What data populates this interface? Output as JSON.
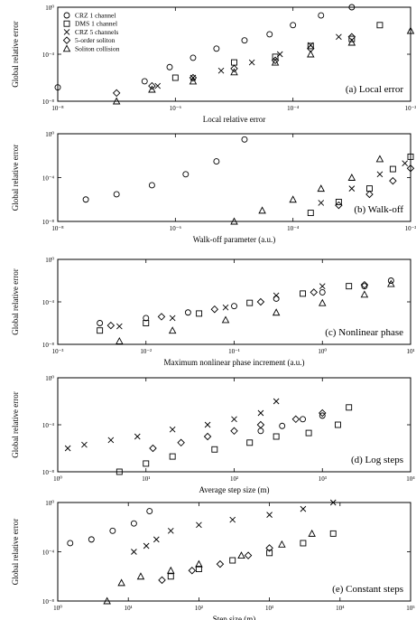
{
  "chart_data": [
    {
      "type": "scatter",
      "panel_label": "(a) Local error",
      "xlabel": "Local relative error",
      "ylabel": "Global relative error",
      "xscale": "log",
      "yscale": "log",
      "xlim": [
        1e-08,
        0.01
      ],
      "ylim": [
        1e-08,
        1
      ],
      "xticks": [
        1e-08,
        1e-06,
        0.0001,
        0.01
      ],
      "xtick_labels": [
        "10⁻⁸",
        "10⁻⁶",
        "10⁻⁴",
        "10⁻²"
      ],
      "yticks": [
        1e-08,
        0.0001,
        1
      ],
      "ytick_labels": [
        "10⁻⁸",
        "10⁻⁴",
        "10⁰"
      ],
      "legend": {
        "position": "top-left",
        "entries": [
          {
            "marker": "circle",
            "label": "CRZ 1 channel"
          },
          {
            "marker": "square",
            "label": "DMS 1 channel"
          },
          {
            "marker": "x",
            "label": "CRZ 5 channels"
          },
          {
            "marker": "diamond",
            "label": "5-order soliton"
          },
          {
            "marker": "triangle",
            "label": "Soliton collision"
          }
        ]
      },
      "series": [
        {
          "marker": "circle",
          "points": [
            [
              1e-08,
              1.5e-07
            ],
            [
              3e-07,
              5e-07
            ],
            [
              8e-07,
              8e-06
            ],
            [
              2e-06,
              5e-05
            ],
            [
              5e-06,
              0.0003
            ],
            [
              1.5e-05,
              0.0015
            ],
            [
              4e-05,
              0.005
            ],
            [
              0.0001,
              0.03
            ],
            [
              0.0003,
              0.2
            ],
            [
              0.001,
              1
            ]
          ]
        },
        {
          "marker": "square",
          "points": [
            [
              1e-06,
              1e-06
            ],
            [
              1e-05,
              2e-05
            ],
            [
              5e-05,
              6e-05
            ],
            [
              0.0002,
              0.0005
            ],
            [
              0.001,
              0.002
            ],
            [
              0.003,
              0.03
            ]
          ]
        },
        {
          "marker": "x",
          "points": [
            [
              5e-07,
              2e-07
            ],
            [
              2e-06,
              1e-06
            ],
            [
              6e-06,
              4e-06
            ],
            [
              2e-05,
              2e-05
            ],
            [
              6e-05,
              0.0001
            ],
            [
              0.0002,
              0.0006
            ],
            [
              0.0006,
              0.003
            ]
          ]
        },
        {
          "marker": "diamond",
          "points": [
            [
              1e-07,
              5e-08
            ],
            [
              4e-07,
              2e-07
            ],
            [
              2e-06,
              1e-06
            ],
            [
              1e-05,
              6e-06
            ],
            [
              5e-05,
              3e-05
            ],
            [
              0.0002,
              0.0003
            ],
            [
              0.001,
              0.003
            ]
          ]
        },
        {
          "marker": "triangle",
          "points": [
            [
              1e-07,
              1e-08
            ],
            [
              4e-07,
              1e-07
            ],
            [
              2e-06,
              5e-07
            ],
            [
              1e-05,
              3e-06
            ],
            [
              5e-05,
              2e-05
            ],
            [
              0.0002,
              0.0001
            ],
            [
              0.001,
              0.001
            ],
            [
              0.01,
              0.01
            ]
          ]
        }
      ]
    },
    {
      "type": "scatter",
      "panel_label": "(b) Walk-off",
      "xlabel": "Walk-off parameter (a.u.)",
      "ylabel": "Global relative error",
      "xscale": "log",
      "yscale": "log",
      "xlim": [
        1e-08,
        0.01
      ],
      "ylim": [
        1e-08,
        1
      ],
      "xticks": [
        1e-08,
        1e-06,
        0.0001,
        0.01
      ],
      "xtick_labels": [
        "10⁻⁸",
        "10⁻⁶",
        "10⁻⁴",
        "10⁻²"
      ],
      "yticks": [
        1e-08,
        0.0001,
        1
      ],
      "ytick_labels": [
        "10⁻⁸",
        "10⁻⁴",
        "10⁰"
      ],
      "series": [
        {
          "marker": "circle",
          "points": [
            [
              3e-08,
              1e-06
            ],
            [
              1e-07,
              3e-06
            ],
            [
              4e-07,
              2e-05
            ],
            [
              1.5e-06,
              0.0002
            ],
            [
              5e-06,
              0.003
            ],
            [
              1.5e-05,
              0.3
            ]
          ]
        },
        {
          "marker": "square",
          "points": [
            [
              0.0002,
              6e-08
            ],
            [
              0.0006,
              6e-07
            ],
            [
              0.002,
              1e-05
            ],
            [
              0.005,
              0.0006
            ],
            [
              0.01,
              0.008
            ]
          ]
        },
        {
          "marker": "x",
          "points": [
            [
              0.0003,
              5e-07
            ],
            [
              0.001,
              1e-05
            ],
            [
              0.003,
              0.0002
            ],
            [
              0.008,
              0.002
            ]
          ]
        },
        {
          "marker": "diamond",
          "points": [
            [
              0.0006,
              3e-07
            ],
            [
              0.002,
              3e-06
            ],
            [
              0.005,
              5e-05
            ],
            [
              0.01,
              0.0007
            ]
          ]
        },
        {
          "marker": "triangle",
          "points": [
            [
              1e-05,
              1e-08
            ],
            [
              3e-05,
              1e-07
            ],
            [
              0.0001,
              1e-06
            ],
            [
              0.0003,
              1e-05
            ],
            [
              0.001,
              0.0001
            ],
            [
              0.003,
              0.005
            ]
          ]
        }
      ]
    },
    {
      "type": "scatter",
      "panel_label": "(c) Nonlinear phase",
      "xlabel": "Maximum nonlinear phase increment (a.u.)",
      "ylabel": "Global relative error",
      "xscale": "log",
      "yscale": "log",
      "xlim": [
        0.001,
        10
      ],
      "ylim": [
        1e-08,
        1
      ],
      "xticks": [
        0.001,
        0.01,
        0.1,
        1,
        10
      ],
      "xtick_labels": [
        "10⁻³",
        "10⁻²",
        "10⁻¹",
        "10⁰",
        "10¹"
      ],
      "yticks": [
        1e-08,
        0.0001,
        1
      ],
      "ytick_labels": [
        "10⁻⁸",
        "10⁻⁴",
        "10⁰"
      ],
      "series": [
        {
          "marker": "circle",
          "points": [
            [
              0.003,
              1e-06
            ],
            [
              0.01,
              3e-06
            ],
            [
              0.03,
              1e-05
            ],
            [
              0.1,
              4e-05
            ],
            [
              0.3,
              0.0002
            ],
            [
              1,
              0.0008
            ],
            [
              3,
              0.003
            ],
            [
              6,
              0.01
            ]
          ]
        },
        {
          "marker": "square",
          "points": [
            [
              0.003,
              2e-07
            ],
            [
              0.01,
              1e-06
            ],
            [
              0.04,
              8e-06
            ],
            [
              0.15,
              8e-05
            ],
            [
              0.6,
              0.0006
            ],
            [
              2,
              0.003
            ]
          ]
        },
        {
          "marker": "x",
          "points": [
            [
              0.005,
              5e-07
            ],
            [
              0.02,
              3e-06
            ],
            [
              0.08,
              3e-05
            ],
            [
              0.3,
              0.0004
            ],
            [
              1,
              0.003
            ]
          ]
        },
        {
          "marker": "diamond",
          "points": [
            [
              0.004,
              6e-07
            ],
            [
              0.015,
              4e-06
            ],
            [
              0.06,
              2e-05
            ],
            [
              0.2,
              0.0001
            ],
            [
              0.8,
              0.0008
            ],
            [
              3,
              0.004
            ]
          ]
        },
        {
          "marker": "triangle",
          "points": [
            [
              0.005,
              2e-08
            ],
            [
              0.02,
              2e-07
            ],
            [
              0.08,
              2e-06
            ],
            [
              0.3,
              1e-05
            ],
            [
              1,
              8e-05
            ],
            [
              3,
              0.0005
            ],
            [
              6,
              0.005
            ]
          ]
        }
      ]
    },
    {
      "type": "scatter",
      "panel_label": "(d) Log steps",
      "xlabel": "Average step size (m)",
      "ylabel": "Global relative error",
      "xscale": "log",
      "yscale": "log",
      "xlim": [
        1,
        10000
      ],
      "ylim": [
        1e-08,
        1
      ],
      "xticks": [
        1,
        10,
        100,
        1000,
        10000
      ],
      "xtick_labels": [
        "10⁰",
        "10¹",
        "10²",
        "10³",
        "10⁴"
      ],
      "yticks": [
        1e-08,
        0.0001,
        1
      ],
      "ytick_labels": [
        "10⁻⁸",
        "10⁻⁴",
        "10⁰"
      ],
      "series": [
        {
          "marker": "circle",
          "points": [
            [
              200,
              3e-05
            ],
            [
              350,
              8e-05
            ],
            [
              600,
              0.0003
            ],
            [
              1000,
              0.0006
            ]
          ]
        },
        {
          "marker": "square",
          "points": [
            [
              5,
              1e-08
            ],
            [
              10,
              5e-08
            ],
            [
              20,
              2e-07
            ],
            [
              60,
              8e-07
            ],
            [
              150,
              3e-06
            ],
            [
              300,
              1e-05
            ],
            [
              700,
              2e-05
            ],
            [
              1500,
              0.0001
            ],
            [
              2000,
              0.003
            ]
          ]
        },
        {
          "marker": "x",
          "points": [
            [
              1.3,
              1e-06
            ],
            [
              2,
              2e-06
            ],
            [
              4,
              5e-06
            ],
            [
              8,
              1e-05
            ],
            [
              20,
              4e-05
            ],
            [
              50,
              0.0001
            ],
            [
              100,
              0.0003
            ],
            [
              200,
              0.001
            ],
            [
              300,
              0.01
            ]
          ]
        },
        {
          "marker": "diamond",
          "points": [
            [
              12,
              1e-06
            ],
            [
              25,
              3e-06
            ],
            [
              50,
              1e-05
            ],
            [
              100,
              3e-05
            ],
            [
              200,
              0.0001
            ],
            [
              500,
              0.0003
            ],
            [
              1000,
              0.001
            ]
          ]
        },
        {
          "marker": "triangle",
          "points": []
        }
      ]
    },
    {
      "type": "scatter",
      "panel_label": "(e) Constant steps",
      "xlabel": "Step size (m)",
      "ylabel": "Global relative error",
      "xscale": "log",
      "yscale": "log",
      "xlim": [
        1,
        100000
      ],
      "ylim": [
        1e-08,
        1
      ],
      "xticks": [
        1,
        10,
        100,
        1000,
        10000,
        100000
      ],
      "xtick_labels": [
        "10⁰",
        "10¹",
        "10²",
        "10³",
        "10⁴",
        "10⁵"
      ],
      "yticks": [
        1e-08,
        0.0001,
        1
      ],
      "ytick_labels": [
        "10⁻⁸",
        "10⁻⁴",
        "10⁰"
      ],
      "series": [
        {
          "marker": "circle",
          "points": [
            [
              1.5,
              0.0005
            ],
            [
              3,
              0.001
            ],
            [
              6,
              0.005
            ],
            [
              12,
              0.02
            ],
            [
              20,
              0.2
            ]
          ]
        },
        {
          "marker": "square",
          "points": [
            [
              40,
              1e-06
            ],
            [
              100,
              4e-06
            ],
            [
              300,
              2e-05
            ],
            [
              1000,
              8e-05
            ],
            [
              3000,
              0.0005
            ],
            [
              8000,
              0.003
            ]
          ]
        },
        {
          "marker": "x",
          "points": [
            [
              12,
              0.0001
            ],
            [
              18,
              0.0003
            ],
            [
              25,
              0.001
            ],
            [
              40,
              0.005
            ],
            [
              100,
              0.015
            ],
            [
              300,
              0.04
            ],
            [
              1000,
              0.1
            ],
            [
              3000,
              0.3
            ],
            [
              8000,
              1
            ]
          ]
        },
        {
          "marker": "diamond",
          "points": [
            [
              30,
              5e-07
            ],
            [
              80,
              3e-06
            ],
            [
              200,
              1e-05
            ],
            [
              500,
              5e-05
            ],
            [
              1000,
              0.0002
            ]
          ]
        },
        {
          "marker": "triangle",
          "points": [
            [
              5,
              1e-08
            ],
            [
              8,
              3e-07
            ],
            [
              15,
              1e-06
            ],
            [
              40,
              3e-06
            ],
            [
              100,
              1e-05
            ],
            [
              400,
              5e-05
            ],
            [
              1500,
              0.0004
            ],
            [
              4000,
              0.003
            ]
          ]
        }
      ]
    }
  ]
}
